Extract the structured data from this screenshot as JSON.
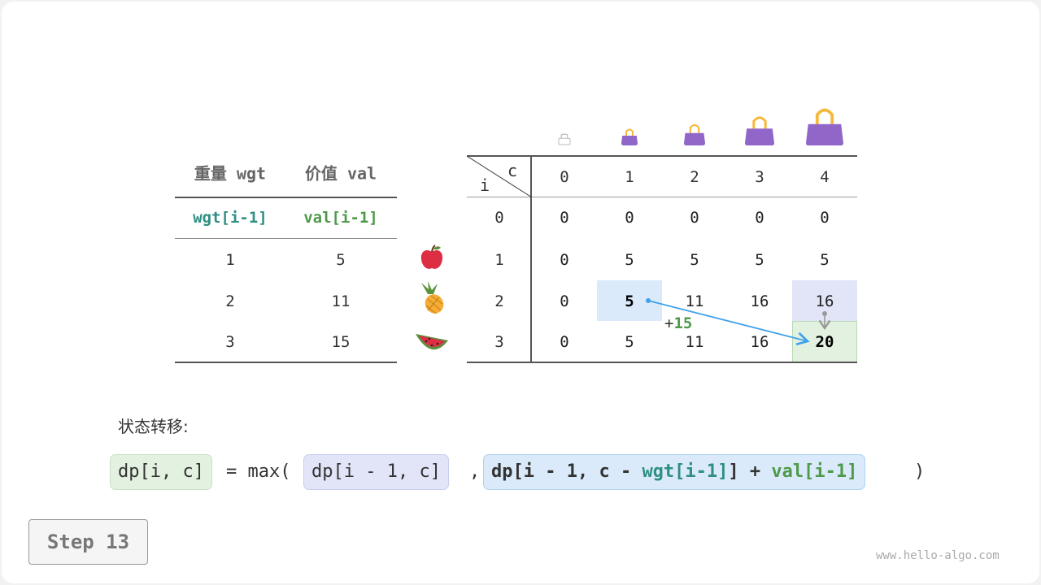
{
  "left_table": {
    "headers": [
      "重量 wgt",
      "价值 val"
    ],
    "subheaders": [
      "wgt[i-1]",
      "val[i-1]"
    ],
    "rows": [
      [
        "1",
        "5"
      ],
      [
        "2",
        "11"
      ],
      [
        "3",
        "15"
      ]
    ]
  },
  "items": [
    "apple-icon",
    "pineapple-icon",
    "watermelon-icon"
  ],
  "dp_table": {
    "corner_i": "i",
    "corner_c": "c",
    "col_headers": [
      "0",
      "1",
      "2",
      "3",
      "4"
    ],
    "row_headers": [
      "0",
      "1",
      "2",
      "3"
    ],
    "rows": [
      [
        "0",
        "0",
        "0",
        "0",
        "0"
      ],
      [
        "0",
        "5",
        "5",
        "5",
        "5"
      ],
      [
        "0",
        "5",
        "11",
        "16",
        "16"
      ],
      [
        "0",
        "5",
        "11",
        "16",
        "20"
      ]
    ],
    "bags": [
      "bag-capacity-0-icon",
      "bag-capacity-1-icon",
      "bag-capacity-2-icon",
      "bag-capacity-3-icon",
      "bag-capacity-4-icon"
    ],
    "add_label": "+15",
    "add_prefix": "+",
    "add_value": "15"
  },
  "formula": {
    "title": "状态转移:",
    "lhs": "dp[i, c]",
    "eq": "= max(",
    "arg1": "dp[i - 1, c]",
    "comma": ",",
    "arg2_a": "dp[i - 1, c - ",
    "arg2_wgt": "wgt[i-1]",
    "arg2_b": "] + ",
    "arg2_val": "val[i-1]",
    "close": ")"
  },
  "step_label": "Step 13",
  "watermark": "www.hello-algo.com",
  "colors": {
    "teal": "#2f8f83",
    "green": "#4e9a4a",
    "blue_cell": "#daeafa",
    "lavender_cell": "#e2e4f8",
    "green_cell": "#e3f1e1",
    "arrow": "#3fa2e8",
    "bag": "#9166c9",
    "handle": "#f6b93b"
  }
}
